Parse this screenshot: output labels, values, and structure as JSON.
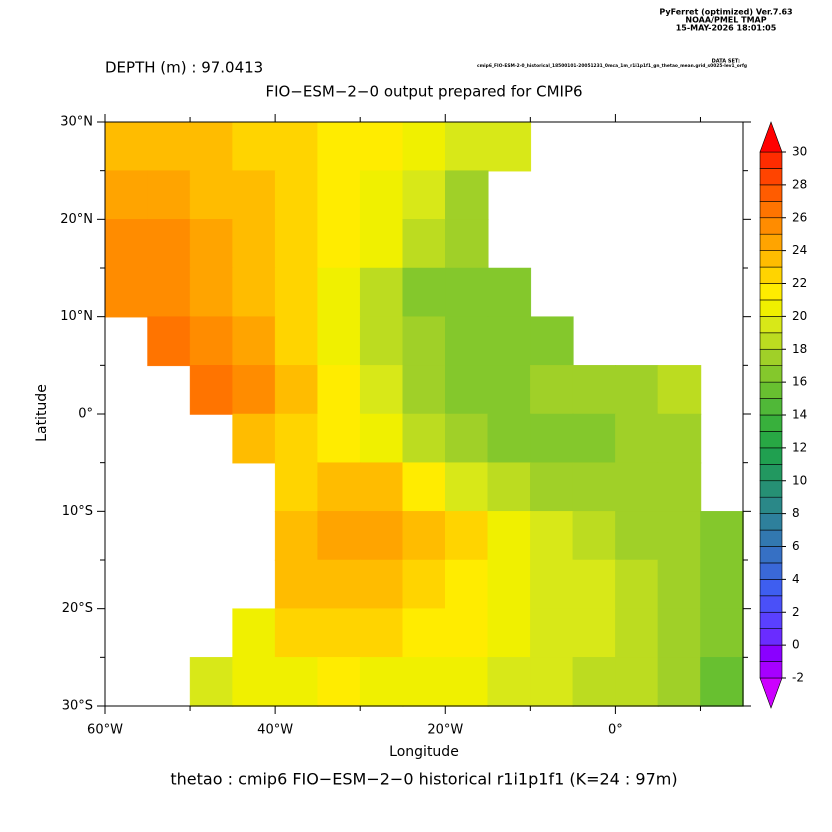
{
  "chart_data": {
    "type": "heatmap",
    "software": "PyFerret (optimized) Ver.7.63",
    "lab": "NOAA/PMEL TMAP",
    "timestamp": "15-MAY-2026 18:01:05",
    "dataset_label": "DATA SET:",
    "dataset": "cmip6_FIO-ESM-2-0_historical_18500101-20051231_0mca_1m_r1i1p1f1_gn_thetao_mean.grid_s0025-lev1_orfg",
    "depth_label": "DEPTH (m) : 97.0413",
    "title": "FIO−ESM−2−0 output prepared for CMIP6",
    "xlabel": "Longitude",
    "ylabel": "Latitude",
    "footer": "thetao : cmip6 FIO−ESM−2−0 historical r1i1p1f1   (K=24 : 97m)",
    "x": [
      -57.5,
      -52.5,
      -47.5,
      -42.5,
      -37.5,
      -32.5,
      -27.5,
      -22.5,
      -17.5,
      -12.5,
      -7.5,
      -2.5,
      2.5,
      7.5,
      12.5
    ],
    "y": [
      27.5,
      22.5,
      17.5,
      12.5,
      7.5,
      2.5,
      -2.5,
      -7.5,
      -12.5,
      -17.5,
      -22.5,
      -27.5
    ],
    "cell": 5,
    "z": [
      [
        23,
        23,
        23,
        22,
        22,
        21,
        21,
        20,
        19,
        19,
        null,
        null,
        null,
        null,
        null
      ],
      [
        24,
        24,
        23,
        23,
        22,
        21,
        20,
        19,
        17,
        null,
        null,
        null,
        null,
        null,
        null
      ],
      [
        25,
        25,
        24,
        23,
        22,
        21,
        20,
        18,
        17,
        null,
        null,
        null,
        null,
        null,
        null
      ],
      [
        25,
        25,
        24,
        23,
        22,
        20,
        18,
        16,
        16,
        16,
        null,
        null,
        null,
        null,
        null
      ],
      [
        null,
        26,
        25,
        24,
        22,
        20,
        18,
        17,
        16,
        16,
        16,
        null,
        null,
        null,
        null
      ],
      [
        null,
        null,
        26,
        25,
        23,
        21,
        19,
        17,
        16,
        16,
        17,
        17,
        17,
        18,
        null
      ],
      [
        null,
        null,
        null,
        23,
        22,
        21,
        20,
        18,
        17,
        16,
        16,
        16,
        17,
        17,
        null
      ],
      [
        null,
        null,
        null,
        null,
        22,
        23,
        23,
        21,
        19,
        18,
        17,
        17,
        17,
        17,
        null
      ],
      [
        null,
        null,
        null,
        null,
        23,
        24,
        24,
        23,
        22,
        20,
        19,
        18,
        17,
        17,
        16
      ],
      [
        null,
        null,
        null,
        null,
        23,
        23,
        23,
        22,
        21,
        20,
        19,
        19,
        18,
        17,
        16
      ],
      [
        null,
        null,
        null,
        20,
        22,
        22,
        22,
        21,
        21,
        20,
        19,
        19,
        18,
        17,
        16
      ],
      [
        null,
        null,
        19,
        20,
        20,
        21,
        20,
        20,
        20,
        19,
        19,
        18,
        18,
        17,
        15
      ]
    ],
    "xlim": [
      -60,
      15
    ],
    "ylim": [
      -30,
      30
    ],
    "xticks": [
      {
        "value": -60,
        "label": "60°W"
      },
      {
        "value": -40,
        "label": "40°W"
      },
      {
        "value": -20,
        "label": "20°W"
      },
      {
        "value": 0,
        "label": "0°"
      }
    ],
    "xminor": [
      -50,
      -30,
      -10,
      10
    ],
    "yticks": [
      {
        "value": 30,
        "label": "30°N"
      },
      {
        "value": 20,
        "label": "20°N"
      },
      {
        "value": 10,
        "label": "10°N"
      },
      {
        "value": 0,
        "label": "0°"
      },
      {
        "value": -10,
        "label": "10°S"
      },
      {
        "value": -20,
        "label": "20°S"
      },
      {
        "value": -30,
        "label": "30°S"
      }
    ],
    "yminor": [
      25,
      15,
      5,
      -5,
      -15,
      -25
    ],
    "clim": [
      -2,
      30
    ],
    "cticks": [
      -2,
      0,
      2,
      4,
      6,
      8,
      10,
      12,
      14,
      16,
      18,
      20,
      22,
      24,
      26,
      28,
      30
    ],
    "colors": [
      "#cc00ff",
      "#a600ff",
      "#8a00ff",
      "#6a2cff",
      "#5a40ff",
      "#4a50f8",
      "#3e5ef0",
      "#3a68d8",
      "#3670c4",
      "#3278b0",
      "#2e809c",
      "#2a8888",
      "#269074",
      "#229860",
      "#20a050",
      "#28a844",
      "#38b03c",
      "#50b838",
      "#68c030",
      "#84c82c",
      "#a0d028",
      "#bcdc20",
      "#d8e818",
      "#f0f000",
      "#ffec00",
      "#ffd400",
      "#ffbc00",
      "#ffa400",
      "#ff8c00",
      "#ff7400",
      "#ff5c00",
      "#ff4400",
      "#ff2c00",
      "#ff0000"
    ]
  }
}
